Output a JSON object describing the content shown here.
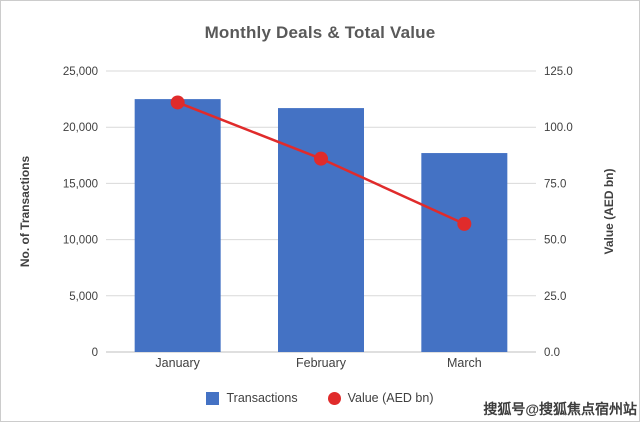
{
  "title": "Monthly Deals & Total Value",
  "watermark": "搜狐号@搜狐焦点宿州站",
  "colors": {
    "bar": "#4472C4",
    "line": "#E02B2B",
    "grid": "#D9D9D9",
    "axis_line": "#BFBFBF",
    "text": "#404040",
    "title": "#595959"
  },
  "chart_data": {
    "type": "bar",
    "title": "Monthly Deals & Total Value",
    "categories": [
      "January",
      "February",
      "March"
    ],
    "series": [
      {
        "name": "Transactions",
        "type": "bar",
        "axis": "left",
        "values": [
          22500,
          21700,
          17700
        ]
      },
      {
        "name": "Value (AED bn)",
        "type": "line",
        "axis": "right",
        "values": [
          111,
          86,
          57
        ]
      }
    ],
    "left_axis": {
      "label": "No. of Transactions",
      "min": 0,
      "max": 25000,
      "step": 5000,
      "tick_labels": [
        "0",
        "5,000",
        "10,000",
        "15,000",
        "20,000",
        "25,000"
      ]
    },
    "right_axis": {
      "label": "Value (AED bn)",
      "min": 0,
      "max": 125,
      "step": 25,
      "tick_labels": [
        "0.0",
        "25.0",
        "50.0",
        "75.0",
        "100.0",
        "125.0"
      ]
    },
    "grid": true,
    "legend_position": "bottom",
    "legend": [
      {
        "label": "Transactions",
        "swatch": "square",
        "color": "#4472C4"
      },
      {
        "label": "Value (AED bn)",
        "swatch": "circle",
        "color": "#E02B2B"
      }
    ]
  }
}
